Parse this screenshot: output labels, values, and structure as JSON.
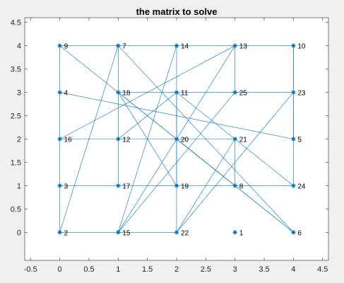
{
  "chart_data": {
    "type": "line",
    "title": "the matrix to solve",
    "xlabel": "",
    "ylabel": "",
    "xlim": [
      -0.6,
      4.6
    ],
    "ylim": [
      -0.6,
      4.6
    ],
    "x_ticks": [
      "-0.5",
      "0",
      "0.5",
      "1",
      "1.5",
      "2",
      "2.5",
      "3",
      "3.5",
      "4",
      "4.5"
    ],
    "y_ticks": [
      "0",
      "0.5",
      "1",
      "1.5",
      "2",
      "2.5",
      "3",
      "3.5",
      "4",
      "4.5"
    ],
    "grid": false,
    "series_color": "#0072BD",
    "nodes": [
      {
        "label": "9",
        "x": 0,
        "y": 4
      },
      {
        "label": "7",
        "x": 1,
        "y": 4
      },
      {
        "label": "14",
        "x": 2,
        "y": 4
      },
      {
        "label": "13",
        "x": 3,
        "y": 4
      },
      {
        "label": "10",
        "x": 4,
        "y": 4
      },
      {
        "label": "4",
        "x": 0,
        "y": 3
      },
      {
        "label": "18",
        "x": 1,
        "y": 3
      },
      {
        "label": "11",
        "x": 2,
        "y": 3
      },
      {
        "label": "25",
        "x": 3,
        "y": 3
      },
      {
        "label": "23",
        "x": 4,
        "y": 3
      },
      {
        "label": "16",
        "x": 0,
        "y": 2
      },
      {
        "label": "12",
        "x": 1,
        "y": 2
      },
      {
        "label": "20",
        "x": 2,
        "y": 2
      },
      {
        "label": "21",
        "x": 3,
        "y": 2
      },
      {
        "label": "5",
        "x": 4,
        "y": 2
      },
      {
        "label": "3",
        "x": 0,
        "y": 1
      },
      {
        "label": "17",
        "x": 1,
        "y": 1
      },
      {
        "label": "19",
        "x": 2,
        "y": 1
      },
      {
        "label": "8",
        "x": 3,
        "y": 1
      },
      {
        "label": "24",
        "x": 4,
        "y": 1
      },
      {
        "label": "2",
        "x": 0,
        "y": 0
      },
      {
        "label": "15",
        "x": 1,
        "y": 0
      },
      {
        "label": "22",
        "x": 2,
        "y": 0
      },
      {
        "label": "1",
        "x": 3,
        "y": 0
      },
      {
        "label": "6",
        "x": 4,
        "y": 0
      }
    ],
    "edges": [
      [
        "9",
        "7"
      ],
      [
        "7",
        "14"
      ],
      [
        "14",
        "13"
      ],
      [
        "13",
        "10"
      ],
      [
        "9",
        "16"
      ],
      [
        "16",
        "3"
      ],
      [
        "3",
        "2"
      ],
      [
        "7",
        "18"
      ],
      [
        "18",
        "12"
      ],
      [
        "12",
        "17"
      ],
      [
        "14",
        "11"
      ],
      [
        "11",
        "20"
      ],
      [
        "20",
        "19"
      ],
      [
        "13",
        "25"
      ],
      [
        "10",
        "23"
      ],
      [
        "23",
        "5"
      ],
      [
        "24",
        "10"
      ],
      [
        "18",
        "11"
      ],
      [
        "11",
        "25"
      ],
      [
        "25",
        "23"
      ],
      [
        "16",
        "12"
      ],
      [
        "12",
        "20"
      ],
      [
        "20",
        "21"
      ],
      [
        "3",
        "17"
      ],
      [
        "17",
        "19"
      ],
      [
        "19",
        "8"
      ],
      [
        "8",
        "24"
      ],
      [
        "2",
        "15"
      ],
      [
        "15",
        "22"
      ],
      [
        "21",
        "8"
      ],
      [
        "9",
        "8"
      ],
      [
        "4",
        "5"
      ],
      [
        "2",
        "7"
      ],
      [
        "16",
        "13"
      ],
      [
        "7",
        "6"
      ],
      [
        "18",
        "6"
      ],
      [
        "18",
        "19"
      ],
      [
        "12",
        "11"
      ],
      [
        "14",
        "15"
      ],
      [
        "13",
        "15"
      ],
      [
        "11",
        "24"
      ],
      [
        "25",
        "15"
      ],
      [
        "23",
        "22"
      ],
      [
        "21",
        "22"
      ],
      [
        "11",
        "22"
      ],
      [
        "20",
        "6"
      ]
    ]
  }
}
